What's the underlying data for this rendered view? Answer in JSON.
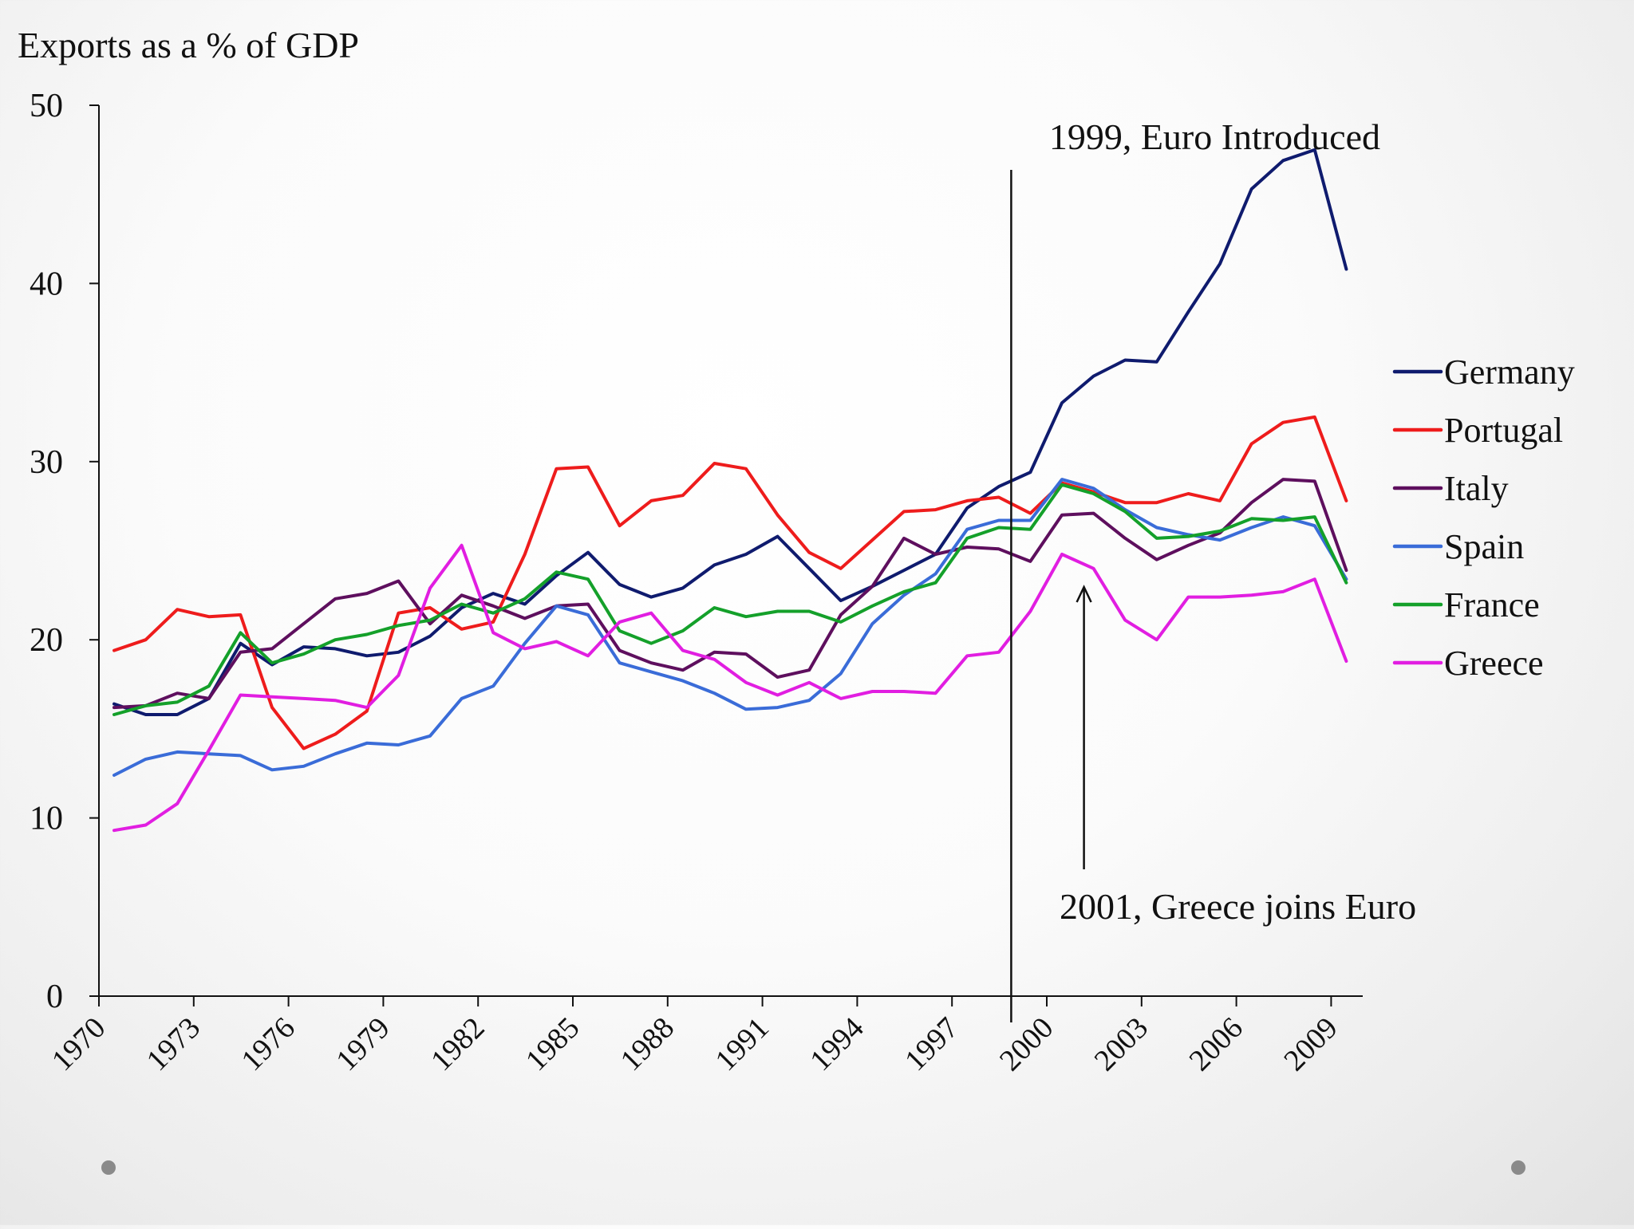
{
  "chart_data": {
    "type": "line",
    "title": "Exports as a % of GDP",
    "xlabel": "",
    "ylabel": "",
    "ylim": [
      0,
      50
    ],
    "xlim": [
      1970,
      2009
    ],
    "y_ticks": [
      0,
      10,
      20,
      30,
      40,
      50
    ],
    "x_ticks": [
      1970,
      1973,
      1976,
      1979,
      1982,
      1985,
      1988,
      1991,
      1994,
      1997,
      2000,
      2003,
      2006,
      2009
    ],
    "x": [
      1970,
      1971,
      1972,
      1973,
      1974,
      1975,
      1976,
      1977,
      1978,
      1979,
      1980,
      1981,
      1982,
      1983,
      1984,
      1985,
      1986,
      1987,
      1988,
      1989,
      1990,
      1991,
      1992,
      1993,
      1994,
      1995,
      1996,
      1997,
      1998,
      1999,
      2000,
      2001,
      2002,
      2003,
      2004,
      2005,
      2006,
      2007,
      2008,
      2009
    ],
    "legend_position": "right",
    "series": [
      {
        "name": "Germany",
        "color": "#0f1b6e",
        "values": [
          16.4,
          15.8,
          15.8,
          16.7,
          19.8,
          18.6,
          19.6,
          19.5,
          19.1,
          19.3,
          20.2,
          21.8,
          22.6,
          22.0,
          23.6,
          24.9,
          23.1,
          22.4,
          22.9,
          24.2,
          24.8,
          25.8,
          24.0,
          22.2,
          23.0,
          23.9,
          24.8,
          27.4,
          28.6,
          29.4,
          33.3,
          34.8,
          35.7,
          35.6,
          38.4,
          41.1,
          45.3,
          46.9,
          47.5,
          40.8
        ]
      },
      {
        "name": "Portugal",
        "color": "#ee1c1c",
        "values": [
          19.4,
          20.0,
          21.7,
          21.3,
          21.4,
          16.2,
          13.9,
          14.7,
          16.0,
          21.5,
          21.8,
          20.6,
          21.0,
          24.8,
          29.6,
          29.7,
          26.4,
          27.8,
          28.1,
          29.9,
          29.6,
          27.0,
          24.9,
          24.0,
          25.6,
          27.2,
          27.3,
          27.8,
          28.0,
          27.1,
          28.8,
          28.3,
          27.7,
          27.7,
          28.2,
          27.8,
          31.0,
          32.2,
          32.5,
          27.8
        ]
      },
      {
        "name": "Italy",
        "color": "#5e0f5e",
        "values": [
          16.2,
          16.3,
          17.0,
          16.7,
          19.3,
          19.5,
          20.9,
          22.3,
          22.6,
          23.3,
          20.9,
          22.5,
          21.9,
          21.2,
          21.9,
          22.0,
          19.4,
          18.7,
          18.3,
          19.3,
          19.2,
          17.9,
          18.3,
          21.4,
          23.0,
          25.7,
          24.8,
          25.2,
          25.1,
          24.4,
          27.0,
          27.1,
          25.7,
          24.5,
          25.3,
          26.0,
          27.7,
          29.0,
          28.9,
          23.9
        ]
      },
      {
        "name": "Spain",
        "color": "#3a6cd8",
        "values": [
          12.4,
          13.3,
          13.7,
          13.6,
          13.5,
          12.7,
          12.9,
          13.6,
          14.2,
          14.1,
          14.6,
          16.7,
          17.4,
          19.8,
          21.9,
          21.4,
          18.7,
          18.2,
          17.7,
          17.0,
          16.1,
          16.2,
          16.6,
          18.1,
          20.9,
          22.5,
          23.7,
          26.2,
          26.7,
          26.7,
          29.0,
          28.5,
          27.3,
          26.3,
          25.9,
          25.6,
          26.3,
          26.9,
          26.4,
          23.4
        ]
      },
      {
        "name": "France",
        "color": "#14a02a",
        "values": [
          15.8,
          16.3,
          16.5,
          17.4,
          20.4,
          18.7,
          19.2,
          20.0,
          20.3,
          20.8,
          21.1,
          22.0,
          21.5,
          22.3,
          23.8,
          23.4,
          20.5,
          19.8,
          20.5,
          21.8,
          21.3,
          21.6,
          21.6,
          21.0,
          21.9,
          22.7,
          23.2,
          25.7,
          26.3,
          26.2,
          28.7,
          28.2,
          27.2,
          25.7,
          25.8,
          26.1,
          26.8,
          26.7,
          26.9,
          23.2
        ]
      },
      {
        "name": "Greece",
        "color": "#e11ee1",
        "values": [
          9.3,
          9.6,
          10.8,
          13.8,
          16.9,
          16.8,
          16.7,
          16.6,
          16.2,
          18.0,
          22.9,
          25.3,
          20.4,
          19.5,
          19.9,
          19.1,
          21.0,
          21.5,
          19.4,
          18.9,
          17.6,
          16.9,
          17.6,
          16.7,
          17.1,
          17.1,
          17.0,
          19.1,
          19.3,
          21.6,
          24.8,
          24.0,
          21.1,
          20.0,
          22.4,
          22.4,
          22.5,
          22.7,
          23.4,
          18.8
        ]
      }
    ],
    "annotations": [
      {
        "text": "1999,  Euro Introduced",
        "year": 1999
      },
      {
        "text": "2001, Greece joins Euro",
        "year": 2001
      }
    ]
  }
}
